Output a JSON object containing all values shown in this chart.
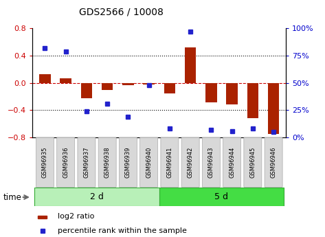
{
  "title": "GDS2566 / 10008",
  "categories": [
    "GSM96935",
    "GSM96936",
    "GSM96937",
    "GSM96938",
    "GSM96939",
    "GSM96940",
    "GSM96941",
    "GSM96942",
    "GSM96943",
    "GSM96944",
    "GSM96945",
    "GSM96946"
  ],
  "log2_ratio": [
    0.13,
    0.07,
    -0.22,
    -0.1,
    -0.03,
    -0.02,
    -0.15,
    0.52,
    -0.28,
    -0.32,
    -0.52,
    -0.75
  ],
  "percentile_rank": [
    82,
    79,
    24,
    31,
    19,
    48,
    8,
    97,
    7,
    6,
    8,
    5
  ],
  "group_labels": [
    "2 d",
    "5 d"
  ],
  "bar_color": "#aa2200",
  "dot_color": "#2222cc",
  "left_ylim": [
    -0.8,
    0.8
  ],
  "right_ylim": [
    0,
    100
  ],
  "left_yticks": [
    -0.8,
    -0.4,
    0.0,
    0.4,
    0.8
  ],
  "right_yticks": [
    0,
    25,
    50,
    75,
    100
  ],
  "right_yticklabels": [
    "0%",
    "25%",
    "50%",
    "75%",
    "100%"
  ],
  "dotted_lines": [
    -0.4,
    0.0,
    0.4
  ],
  "dotted_styles": [
    ":",
    "--",
    ":"
  ],
  "dotted_colors": [
    "black",
    "#cc0000",
    "black"
  ],
  "time_label": "time",
  "legend_items": [
    "log2 ratio",
    "percentile rank within the sample"
  ],
  "bg_color": "#ffffff",
  "group1_color": "#b8f0b8",
  "group2_color": "#44dd44",
  "tick_label_color_left": "#cc0000",
  "tick_label_color_right": "#0000cc",
  "group_border_color": "#33aa33"
}
